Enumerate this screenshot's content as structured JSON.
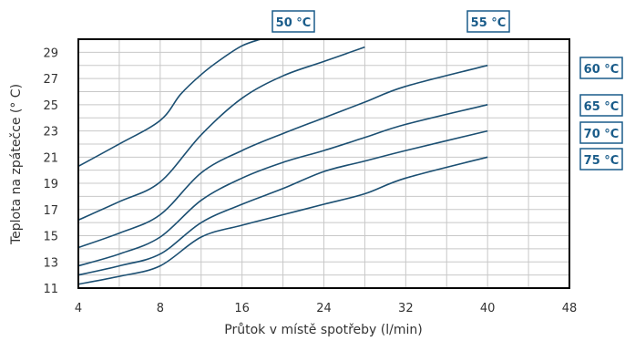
{
  "chart_data": {
    "type": "line",
    "title": "",
    "xlabel": "Průtok v místě spotřeby (l/min)",
    "ylabel": "Teplota na zpátečce (° C)",
    "x_ticks": [
      4,
      8,
      16,
      24,
      32,
      40,
      48
    ],
    "y_ticks": [
      11,
      13,
      15,
      17,
      19,
      21,
      23,
      25,
      27,
      29
    ],
    "ylim": [
      11,
      30
    ],
    "grid": true,
    "line_color": "#1b4f72",
    "label_color": "#1a5c8a",
    "series": [
      {
        "name": "50 °C",
        "points": [
          [
            4,
            20.3
          ],
          [
            6,
            22.0
          ],
          [
            8,
            23.8
          ],
          [
            10,
            25.8
          ],
          [
            12,
            27.3
          ],
          [
            14,
            28.5
          ],
          [
            16,
            29.5
          ],
          [
            17.8,
            30.0
          ]
        ]
      },
      {
        "name": "55 °C",
        "points": [
          [
            4,
            16.2
          ],
          [
            6,
            17.6
          ],
          [
            8,
            19.1
          ],
          [
            12,
            22.7
          ],
          [
            16,
            25.5
          ],
          [
            20,
            27.2
          ],
          [
            24,
            28.3
          ],
          [
            28,
            29.4
          ]
        ]
      },
      {
        "name": "60 °C",
        "points": [
          [
            4,
            14.1
          ],
          [
            6,
            15.2
          ],
          [
            8,
            16.6
          ],
          [
            12,
            19.8
          ],
          [
            16,
            21.5
          ],
          [
            20,
            22.8
          ],
          [
            24,
            24.0
          ],
          [
            28,
            25.2
          ],
          [
            32,
            26.4
          ],
          [
            40,
            28.0
          ]
        ]
      },
      {
        "name": "65 °C",
        "points": [
          [
            4,
            12.7
          ],
          [
            6,
            13.6
          ],
          [
            8,
            14.9
          ],
          [
            12,
            17.7
          ],
          [
            16,
            19.4
          ],
          [
            20,
            20.6
          ],
          [
            24,
            21.5
          ],
          [
            28,
            22.5
          ],
          [
            32,
            23.5
          ],
          [
            40,
            25.0
          ]
        ]
      },
      {
        "name": "70 °C",
        "points": [
          [
            4,
            12.0
          ],
          [
            6,
            12.7
          ],
          [
            8,
            13.6
          ],
          [
            12,
            16.0
          ],
          [
            16,
            17.4
          ],
          [
            20,
            18.6
          ],
          [
            24,
            19.9
          ],
          [
            28,
            20.7
          ],
          [
            32,
            21.5
          ],
          [
            40,
            23.0
          ]
        ]
      },
      {
        "name": "75 °C",
        "points": [
          [
            4,
            11.3
          ],
          [
            6,
            11.9
          ],
          [
            8,
            12.7
          ],
          [
            12,
            14.9
          ],
          [
            16,
            15.8
          ],
          [
            20,
            16.6
          ],
          [
            24,
            17.4
          ],
          [
            28,
            18.2
          ],
          [
            32,
            19.4
          ],
          [
            40,
            21.0
          ]
        ]
      }
    ]
  }
}
